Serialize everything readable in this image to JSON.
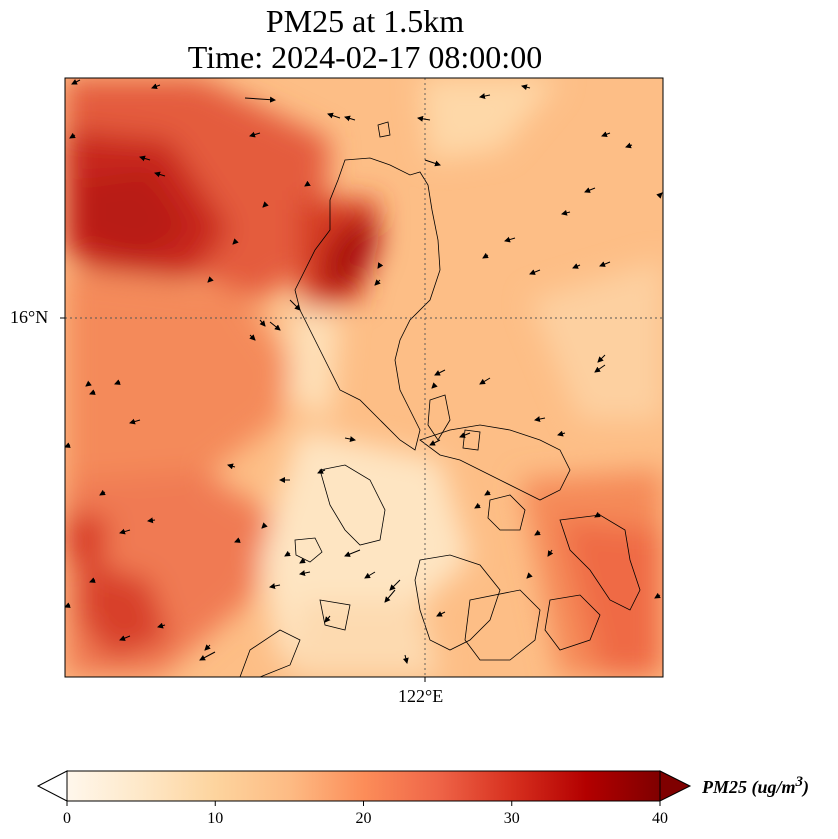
{
  "title": {
    "line1": "PM25 at 1.5km",
    "line2": "Time: 2024-02-17 08:00:00"
  },
  "map": {
    "latitude_label": "16°N",
    "longitude_label": "122°E",
    "gridlines": "dotted",
    "coastline_color": "#000000"
  },
  "colorbar": {
    "label_text": "PM25 (ug/m",
    "label_superscript": "3",
    "label_close": ")",
    "ticks": [
      "0",
      "10",
      "20",
      "30",
      "40"
    ],
    "min": 0,
    "max": 40,
    "extend": "both",
    "colormap": "OrRd",
    "colors": [
      "#fff7ec",
      "#fee8c8",
      "#fdd49e",
      "#fdbb84",
      "#fc8d59",
      "#ef6548",
      "#d7301f",
      "#b30000",
      "#7f0000"
    ]
  }
}
